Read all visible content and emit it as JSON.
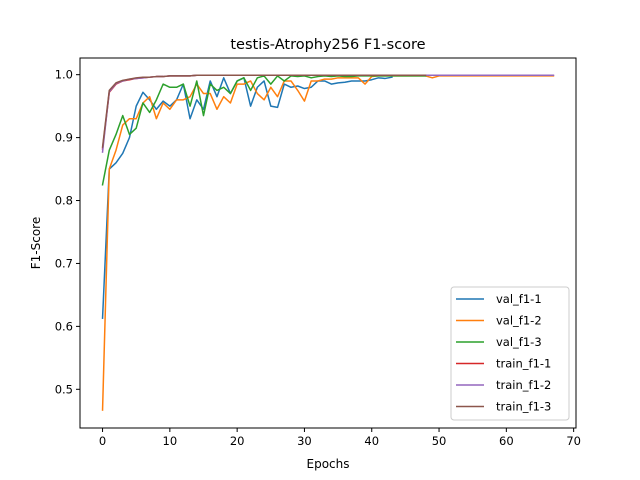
{
  "chart_data": {
    "type": "line",
    "title": "testis-Atrophy256 F1-score",
    "xlabel": "Epochs",
    "ylabel": "F1-Score",
    "xlim": [
      -3.35,
      70.35
    ],
    "ylim": [
      0.4385,
      1.0265
    ],
    "xticks": [
      0,
      10,
      20,
      30,
      40,
      50,
      60,
      70
    ],
    "yticks": [
      0.5,
      0.6,
      0.7,
      0.8,
      0.9,
      1.0
    ],
    "xtick_labels": [
      "0",
      "10",
      "20",
      "30",
      "40",
      "50",
      "60",
      "70"
    ],
    "ytick_labels": [
      "0.5",
      "0.6",
      "0.7",
      "0.8",
      "0.9",
      "1.0"
    ],
    "legend": {
      "placement": "lower-right"
    },
    "grid": false,
    "series": [
      {
        "name": "val_f1-1",
        "color": "#1f77b4",
        "values": [
          0.613,
          0.85,
          0.86,
          0.875,
          0.9,
          0.95,
          0.972,
          0.96,
          0.945,
          0.958,
          0.95,
          0.96,
          0.985,
          0.93,
          0.96,
          0.945,
          0.99,
          0.965,
          0.995,
          0.97,
          0.99,
          0.995,
          0.95,
          0.98,
          0.99,
          0.95,
          0.948,
          0.985,
          0.98,
          0.982,
          0.978,
          0.98,
          0.99,
          0.99,
          0.985,
          0.987,
          0.988,
          0.99,
          0.99,
          0.99,
          0.992,
          0.995,
          0.994,
          0.996
        ]
      },
      {
        "name": "val_f1-2",
        "color": "#ff7f0e",
        "values": [
          0.467,
          0.85,
          0.88,
          0.92,
          0.93,
          0.93,
          0.955,
          0.965,
          0.93,
          0.955,
          0.945,
          0.96,
          0.96,
          0.965,
          0.985,
          0.97,
          0.97,
          0.945,
          0.965,
          0.955,
          0.985,
          0.985,
          0.99,
          0.97,
          0.96,
          0.98,
          0.965,
          0.99,
          0.99,
          0.975,
          0.958,
          0.99,
          0.99,
          0.993,
          0.993,
          0.995,
          0.995,
          0.995,
          0.995,
          0.985,
          0.997,
          0.998,
          0.998,
          0.998,
          0.998,
          0.998,
          0.998,
          0.998,
          0.998,
          0.995,
          0.998,
          0.998,
          0.998,
          0.998,
          0.998,
          0.998,
          0.998,
          0.998,
          0.998,
          0.998,
          0.998,
          0.998,
          0.998,
          0.998,
          0.998,
          0.998,
          0.998,
          0.998
        ]
      },
      {
        "name": "val_f1-3",
        "color": "#2ca02c",
        "values": [
          0.825,
          0.88,
          0.905,
          0.935,
          0.905,
          0.915,
          0.955,
          0.94,
          0.96,
          0.985,
          0.98,
          0.98,
          0.985,
          0.95,
          0.99,
          0.935,
          0.985,
          0.975,
          0.98,
          0.97,
          0.99,
          0.995,
          0.975,
          0.995,
          0.998,
          0.985,
          0.998,
          0.99,
          0.998,
          0.997,
          0.998,
          0.995,
          0.997,
          0.998,
          0.997,
          0.998,
          0.997,
          0.997,
          0.998,
          0.998,
          0.998,
          0.998,
          0.998,
          0.998,
          0.998,
          0.998,
          0.998,
          0.998,
          0.998
        ]
      },
      {
        "name": "train_f1-1",
        "color": "#d62728",
        "values": [
          0.882,
          0.972,
          0.985,
          0.99,
          0.992,
          0.994,
          0.995,
          0.996,
          0.997,
          0.997,
          0.998,
          0.998,
          0.998,
          0.998,
          0.999,
          0.999,
          0.999,
          0.999,
          0.999,
          0.999,
          0.999,
          0.999,
          0.999,
          0.999,
          0.999,
          0.999,
          0.999,
          0.999,
          0.999,
          0.999,
          0.999,
          0.999,
          0.999,
          0.999,
          0.999,
          0.999,
          0.999,
          0.999,
          0.999,
          0.999,
          0.999,
          0.999,
          0.999,
          0.999
        ]
      },
      {
        "name": "train_f1-2",
        "color": "#9467bd",
        "values": [
          0.877,
          0.973,
          0.986,
          0.99,
          0.993,
          0.994,
          0.995,
          0.996,
          0.997,
          0.997,
          0.998,
          0.998,
          0.998,
          0.998,
          0.999,
          0.999,
          0.999,
          0.999,
          0.999,
          0.999,
          0.999,
          0.999,
          0.999,
          0.999,
          0.999,
          0.999,
          0.999,
          0.999,
          0.999,
          0.999,
          0.999,
          0.999,
          0.999,
          0.999,
          0.999,
          0.999,
          0.999,
          0.999,
          0.999,
          0.999,
          0.999,
          0.999,
          0.999,
          0.999,
          0.999,
          0.999,
          0.999,
          0.999,
          0.999,
          0.999,
          0.999,
          0.999,
          0.999,
          0.999,
          0.999,
          0.999,
          0.999,
          0.999,
          0.999,
          0.999,
          0.999,
          0.999,
          0.999,
          0.999,
          0.999,
          0.999,
          0.999,
          0.999
        ]
      },
      {
        "name": "train_f1-3",
        "color": "#8c564b",
        "values": [
          0.885,
          0.975,
          0.987,
          0.991,
          0.993,
          0.995,
          0.996,
          0.996,
          0.997,
          0.997,
          0.998,
          0.998,
          0.998,
          0.998,
          0.999,
          0.999,
          0.999,
          0.999,
          0.999,
          0.999,
          0.999,
          0.999,
          0.999,
          0.999,
          0.999,
          0.999,
          0.999,
          0.999,
          0.999,
          0.999,
          0.999,
          0.999,
          0.999,
          0.999,
          0.999,
          0.999,
          0.999,
          0.999,
          0.999,
          0.999,
          0.999,
          0.999,
          0.999,
          0.999,
          0.999,
          0.999,
          0.999,
          0.999,
          0.999
        ]
      }
    ]
  }
}
